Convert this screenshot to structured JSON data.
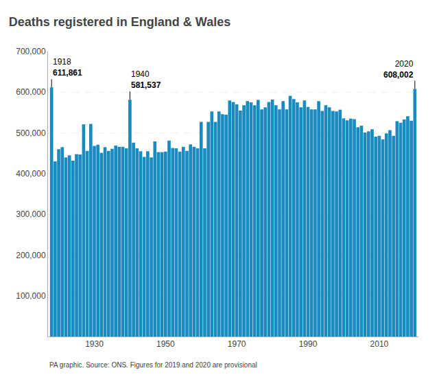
{
  "chart_data": {
    "type": "bar",
    "title": "Deaths registered in England & Wales",
    "footnote": "PA graphic. Source: ONS. Figures for 2019 and 2020 are provisional",
    "x": [
      1918,
      1919,
      1920,
      1921,
      1922,
      1923,
      1924,
      1925,
      1926,
      1927,
      1928,
      1929,
      1930,
      1931,
      1932,
      1933,
      1934,
      1935,
      1936,
      1937,
      1938,
      1939,
      1940,
      1941,
      1942,
      1943,
      1944,
      1945,
      1946,
      1947,
      1948,
      1949,
      1950,
      1951,
      1952,
      1953,
      1954,
      1955,
      1956,
      1957,
      1958,
      1959,
      1960,
      1961,
      1962,
      1963,
      1964,
      1965,
      1966,
      1967,
      1968,
      1969,
      1970,
      1971,
      1972,
      1973,
      1974,
      1975,
      1976,
      1977,
      1978,
      1979,
      1980,
      1981,
      1982,
      1983,
      1984,
      1985,
      1986,
      1987,
      1988,
      1989,
      1990,
      1991,
      1992,
      1993,
      1994,
      1995,
      1996,
      1997,
      1998,
      1999,
      2000,
      2001,
      2002,
      2003,
      2004,
      2005,
      2006,
      2007,
      2008,
      2009,
      2010,
      2011,
      2012,
      2013,
      2014,
      2015,
      2016,
      2017,
      2018,
      2019,
      2020
    ],
    "values": [
      611861,
      430000,
      460000,
      465000,
      440000,
      445000,
      432000,
      448000,
      447000,
      521000,
      456000,
      522000,
      468000,
      471000,
      451000,
      465000,
      456000,
      461000,
      469000,
      466000,
      466000,
      462000,
      581537,
      476000,
      462000,
      455000,
      441000,
      455000,
      440000,
      479000,
      453000,
      453000,
      454000,
      481000,
      463000,
      462000,
      454000,
      466000,
      456000,
      472000,
      466000,
      462000,
      527000,
      462000,
      527000,
      553000,
      527000,
      553000,
      546000,
      545000,
      580000,
      576000,
      570000,
      555000,
      568000,
      578000,
      575000,
      568000,
      581000,
      558000,
      563000,
      576000,
      582000,
      568000,
      558000,
      578000,
      558000,
      591000,
      583000,
      575000,
      563000,
      580000,
      564000,
      558000,
      558000,
      578000,
      554000,
      568000,
      563000,
      554000,
      553000,
      557000,
      536000,
      531000,
      535000,
      534000,
      514000,
      518000,
      501000,
      504000,
      509000,
      491000,
      493000,
      484000,
      499000,
      507000,
      493000,
      529000,
      525000,
      533000,
      541000,
      530000,
      608002
    ],
    "color": "#1a8bbf",
    "xlim": [
      1917,
      2021
    ],
    "xticks": [
      1930,
      1950,
      1970,
      1990,
      2010
    ],
    "ylim": [
      0,
      700000
    ],
    "yticks": [
      {
        "value": 100000,
        "label": "100,000"
      },
      {
        "value": 200000,
        "label": "200,000"
      },
      {
        "value": 300000,
        "label": "300,000"
      },
      {
        "value": 400000,
        "label": "400,000"
      },
      {
        "value": 500000,
        "label": "500,000"
      },
      {
        "value": 600000,
        "label": "600,000"
      },
      {
        "value": 700000,
        "label": "700,000"
      }
    ],
    "grid": true,
    "annotations": [
      {
        "x": 1918,
        "y": 611861,
        "text": "1918",
        "value_label": "611,861"
      },
      {
        "x": 1940,
        "y": 581537,
        "text": "1940",
        "value_label": "581,537"
      },
      {
        "x": 2020,
        "y": 608002,
        "text": "2020",
        "value_label": "608,002"
      }
    ]
  }
}
